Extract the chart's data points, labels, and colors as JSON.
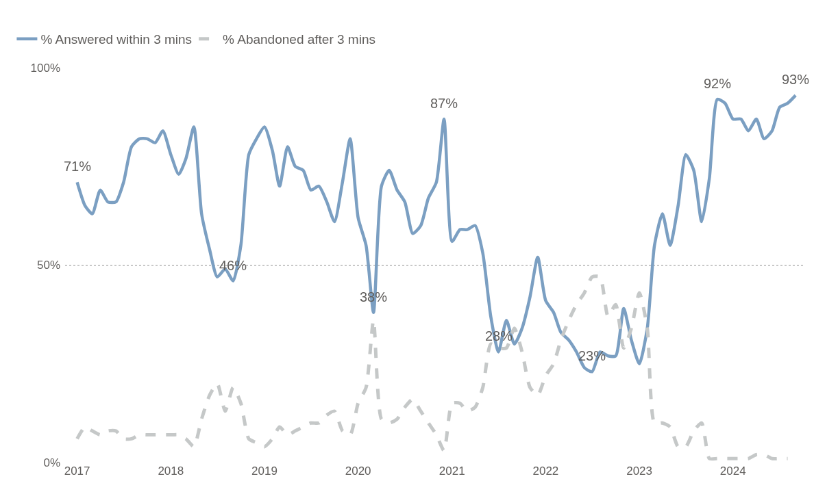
{
  "chart_data": {
    "type": "line",
    "x": [
      "2017-01",
      "2017-02",
      "2017-03",
      "2017-04",
      "2017-05",
      "2017-06",
      "2017-07",
      "2017-08",
      "2017-09",
      "2017-10",
      "2017-11",
      "2017-12",
      "2018-01",
      "2018-02",
      "2018-03",
      "2018-04",
      "2018-05",
      "2018-06",
      "2018-07",
      "2018-08",
      "2018-09",
      "2018-10",
      "2018-11",
      "2018-12",
      "2019-01",
      "2019-02",
      "2019-03",
      "2019-04",
      "2019-05",
      "2019-06",
      "2019-07",
      "2019-08",
      "2019-09",
      "2019-10",
      "2019-11",
      "2019-12",
      "2020-01",
      "2020-02",
      "2020-03",
      "2020-04",
      "2020-05",
      "2020-06",
      "2020-07",
      "2020-08",
      "2020-09",
      "2020-10",
      "2020-11",
      "2020-12",
      "2021-01",
      "2021-02",
      "2021-03",
      "2021-04",
      "2021-05",
      "2021-06",
      "2021-07",
      "2021-08",
      "2021-09",
      "2021-10",
      "2021-11",
      "2021-12",
      "2022-01",
      "2022-02",
      "2022-03",
      "2022-04",
      "2022-05",
      "2022-06",
      "2022-07",
      "2022-08",
      "2022-09",
      "2022-10",
      "2022-11",
      "2022-12",
      "2023-01",
      "2023-02",
      "2023-03",
      "2023-04",
      "2023-05",
      "2023-06",
      "2023-07",
      "2023-08",
      "2023-09",
      "2023-10",
      "2023-11",
      "2023-12",
      "2024-01",
      "2024-02",
      "2024-03",
      "2024-04",
      "2024-05",
      "2024-06",
      "2024-07",
      "2024-08",
      "2024-09"
    ],
    "series": [
      {
        "name": "% Answered within 3 mins",
        "color": "#7b9fc2",
        "line_style": "solid",
        "values": [
          71,
          65,
          63,
          69,
          66,
          66,
          71,
          80,
          82,
          82,
          81,
          84,
          78,
          73,
          77,
          85,
          63,
          54,
          47,
          49,
          46,
          55,
          78,
          82,
          85,
          79,
          70,
          80,
          75,
          74,
          69,
          70,
          66,
          61,
          71,
          82,
          62,
          55,
          38,
          70,
          74,
          69,
          66,
          58,
          60,
          67,
          71,
          87,
          56,
          59,
          59,
          60,
          53,
          37,
          28,
          36,
          30,
          34,
          42,
          52,
          41,
          38,
          33,
          31,
          28,
          24,
          23,
          28,
          27,
          27,
          39,
          31,
          25,
          34,
          55,
          63,
          55,
          65,
          78,
          74,
          61,
          72,
          92,
          91,
          87,
          87,
          84,
          87,
          82,
          84,
          90,
          91,
          93
        ]
      },
      {
        "name": "% Abandoned after 3 mins",
        "color": "#c5c8c8",
        "line_style": "dashed",
        "values": [
          6,
          9,
          8,
          7,
          8,
          8,
          6,
          6,
          7,
          7,
          7,
          7,
          7,
          7,
          6,
          4,
          11,
          17,
          20,
          13,
          19,
          15,
          6,
          5,
          4,
          6,
          9,
          7,
          8,
          9,
          10,
          10,
          12,
          13,
          8,
          7,
          15,
          19,
          36,
          11,
          10,
          11,
          14,
          16,
          13,
          10,
          7,
          3,
          15,
          15,
          13,
          14,
          19,
          30,
          29,
          29,
          34,
          28,
          19,
          17,
          22,
          25,
          31,
          36,
          40,
          43,
          47,
          47,
          37,
          40,
          29,
          34,
          43,
          34,
          10,
          10,
          9,
          4,
          4,
          8,
          10,
          1,
          1,
          1,
          1,
          1,
          1,
          2,
          2,
          1,
          1,
          1,
          null
        ]
      }
    ],
    "annotations": [
      {
        "text": "71%",
        "x": "2017-01",
        "y": 71
      },
      {
        "text": "46%",
        "x": "2018-09",
        "y": 46
      },
      {
        "text": "38%",
        "x": "2020-03",
        "y": 38
      },
      {
        "text": "87%",
        "x": "2020-12",
        "y": 87
      },
      {
        "text": "28%",
        "x": "2021-07",
        "y": 28
      },
      {
        "text": "23%",
        "x": "2022-07",
        "y": 23
      },
      {
        "text": "92%",
        "x": "2023-11",
        "y": 92
      },
      {
        "text": "93%",
        "x": "2024-09",
        "y": 93
      }
    ],
    "xlim": [
      "2016-11-15",
      "2024-10-08"
    ],
    "xticks": [
      "2017",
      "2018",
      "2019",
      "2020",
      "2021",
      "2022",
      "2023",
      "2024"
    ],
    "ylim": [
      0,
      100
    ],
    "yticks": [
      {
        "value": 0,
        "label": "0%"
      },
      {
        "value": 50,
        "label": "50%"
      },
      {
        "value": 100,
        "label": "100%"
      }
    ],
    "grid": "y",
    "legend": "top left",
    "marker": "none"
  }
}
